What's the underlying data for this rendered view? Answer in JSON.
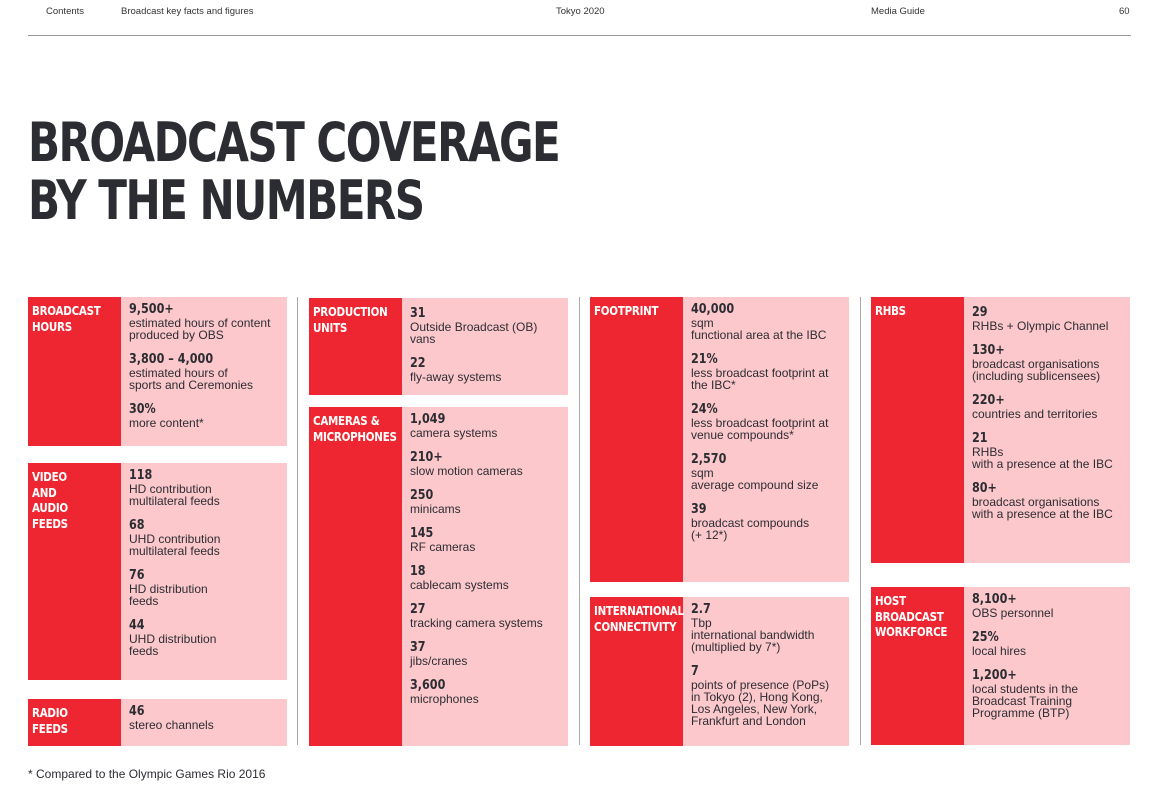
{
  "header": {
    "contents": "Contents",
    "section": "Broadcast key facts and figures",
    "event": "Tokyo 2020",
    "guide": "Media Guide",
    "page": "60"
  },
  "title": [
    "BROADCAST COVERAGE",
    "BY THE NUMBERS"
  ],
  "blocks": {
    "broadcast_hours": {
      "label": [
        "BROADCAST",
        "HOURS"
      ],
      "stats": [
        {
          "value": "9,500+",
          "desc": [
            "estimated hours of content",
            "produced by OBS"
          ]
        },
        {
          "value": "3,800 – 4,000",
          "desc": [
            "estimated hours of",
            "sports and Ceremonies"
          ]
        },
        {
          "value": "30%",
          "desc": [
            "more content*"
          ]
        }
      ]
    },
    "video_audio_feeds": {
      "label": [
        "VIDEO",
        "AND",
        "AUDIO",
        "FEEDS"
      ],
      "stats": [
        {
          "value": "118",
          "desc": [
            "HD contribution",
            "multilateral feeds"
          ]
        },
        {
          "value": "68",
          "desc": [
            "UHD contribution",
            "multilateral feeds"
          ]
        },
        {
          "value": "76",
          "desc": [
            "HD distribution",
            "feeds"
          ]
        },
        {
          "value": "44",
          "desc": [
            "UHD distribution",
            "feeds"
          ]
        }
      ]
    },
    "radio_feeds": {
      "label": [
        "RADIO",
        "FEEDS"
      ],
      "stats": [
        {
          "value": "46",
          "desc": [
            "stereo channels"
          ]
        }
      ]
    },
    "production_units": {
      "label": [
        "PRODUCTION",
        "UNITS"
      ],
      "stats": [
        {
          "value": "31",
          "desc": [
            "Outside Broadcast (OB)",
            "vans"
          ]
        },
        {
          "value": "22",
          "desc": [
            "fly-away systems"
          ]
        }
      ]
    },
    "cameras_microphones": {
      "label": [
        "CAMERAS &",
        "MICROPHONES"
      ],
      "stats": [
        {
          "value": "1,049",
          "desc": [
            "camera systems"
          ]
        },
        {
          "value": "210+",
          "desc": [
            "slow motion cameras"
          ]
        },
        {
          "value": "250",
          "desc": [
            "minicams"
          ]
        },
        {
          "value": "145",
          "desc": [
            "RF cameras"
          ]
        },
        {
          "value": "18",
          "desc": [
            "cablecam systems"
          ]
        },
        {
          "value": "27",
          "desc": [
            "tracking camera systems"
          ]
        },
        {
          "value": "37",
          "desc": [
            "jibs/cranes"
          ]
        },
        {
          "value": "3,600",
          "desc": [
            "microphones"
          ]
        }
      ]
    },
    "footprint": {
      "label": [
        "FOOTPRINT"
      ],
      "stats": [
        {
          "value": "40,000",
          "desc": [
            "sqm",
            "functional area at the IBC"
          ]
        },
        {
          "value": "21%",
          "desc": [
            "less broadcast footprint at",
            "the IBC*"
          ]
        },
        {
          "value": "24%",
          "desc": [
            "less broadcast footprint at",
            "venue compounds*"
          ]
        },
        {
          "value": "2,570",
          "desc": [
            "sqm",
            "average compound size"
          ]
        },
        {
          "value": "39",
          "desc": [
            "broadcast compounds",
            "(+ 12*)"
          ]
        }
      ]
    },
    "international_connectivity": {
      "label": [
        "INTERNATIONAL",
        "CONNECTIVITY"
      ],
      "stats": [
        {
          "value": "2.7",
          "desc": [
            "Tbp",
            "international bandwidth",
            "(multiplied by 7*)"
          ]
        },
        {
          "value": "7",
          "desc": [
            "points of presence (PoPs)",
            "in Tokyo (2), Hong Kong,",
            "Los Angeles, New York,",
            "Frankfurt and London"
          ]
        }
      ]
    },
    "rhbs": {
      "label": [
        "RHBS"
      ],
      "stats": [
        {
          "value": "29",
          "desc": [
            "RHBs + Olympic Channel"
          ]
        },
        {
          "value": "130+",
          "desc": [
            "broadcast organisations",
            "(including sublicensees)"
          ]
        },
        {
          "value": "220+",
          "desc": [
            "countries and territories"
          ]
        },
        {
          "value": "21",
          "desc": [
            "RHBs",
            "with a presence at the IBC"
          ]
        },
        {
          "value": "80+",
          "desc": [
            "broadcast organisations",
            "with a presence at the IBC"
          ]
        }
      ]
    },
    "host_broadcast_workforce": {
      "label": [
        "HOST",
        "BROADCAST",
        "WORKFORCE"
      ],
      "stats": [
        {
          "value": "8,100+",
          "desc": [
            "OBS personnel"
          ]
        },
        {
          "value": "25%",
          "desc": [
            "local hires"
          ]
        },
        {
          "value": "1,200+",
          "desc": [
            "local students in the",
            "Broadcast Training",
            "Programme (BTP)"
          ]
        }
      ]
    }
  },
  "footnote": "* Compared to the Olympic Games Rio 2016",
  "colors": {
    "label_red": "#ee2631",
    "panel_pink": "#fcc8cb",
    "text_dark": "#2b2d33"
  }
}
